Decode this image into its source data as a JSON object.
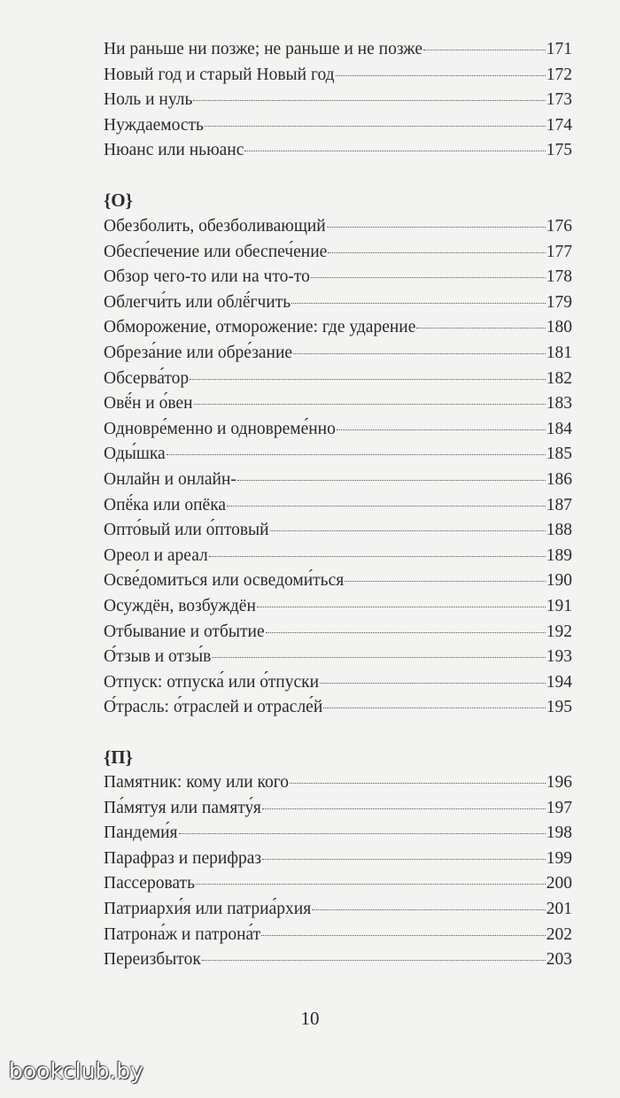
{
  "sections": [
    {
      "heading": "",
      "entries": [
        {
          "title": "Ни раньше ни позже; не раньше и не позже",
          "page": "171"
        },
        {
          "title": "Новый год и старый Новый год",
          "page": "172"
        },
        {
          "title": "Ноль и нуль",
          "page": "173"
        },
        {
          "title": "Нуждаемость",
          "page": "174"
        },
        {
          "title": "Нюанс или ньюанс",
          "page": "175"
        }
      ]
    },
    {
      "heading": "{О}",
      "entries": [
        {
          "title": "Обезболить, обезболивающий",
          "page": "176"
        },
        {
          "title": "Обесп́ечение или обеспеч́ение",
          "page": "177"
        },
        {
          "title": "Обзор чего-то или на что-то",
          "page": "178"
        },
        {
          "title": "Облегчи́ть или облё́гчить",
          "page": "179"
        },
        {
          "title": "Обморожение, отморожение: где ударение",
          "page": "180"
        },
        {
          "title": "Обреза́ние или обре́зание",
          "page": "181"
        },
        {
          "title": "Обсерва́тор",
          "page": "182"
        },
        {
          "title": "Овё́н и о́вен",
          "page": "183"
        },
        {
          "title": "Одновре́менно и одновреме́нно",
          "page": "184"
        },
        {
          "title": "Оды́шка",
          "page": "185"
        },
        {
          "title": "Онлайн и онлайн-",
          "page": "186"
        },
        {
          "title": "Опё́ка или опёка",
          "page": "187"
        },
        {
          "title": "Опто́вый или о́птовый",
          "page": "188"
        },
        {
          "title": "Ореол и ареал",
          "page": "189"
        },
        {
          "title": "Осве́домиться или осведоми́ться",
          "page": "190"
        },
        {
          "title": "Осуждён, возбуждён",
          "page": "191"
        },
        {
          "title": "Отбывание и отбытие",
          "page": "192"
        },
        {
          "title": "О́тзыв и отзы́в",
          "page": "193"
        },
        {
          "title": "Отпуск: отпуска́ или о́тпуски",
          "page": "194"
        },
        {
          "title": "О́трасль: о́траслей и отрасле́й",
          "page": "195"
        }
      ]
    },
    {
      "heading": "{П}",
      "entries": [
        {
          "title": "Памятник: кому или кого",
          "page": "196"
        },
        {
          "title": "Па́мятуя или памяту́я",
          "page": "197"
        },
        {
          "title": "Пандеми́я",
          "page": "198"
        },
        {
          "title": "Парафраз и перифраз",
          "page": "199"
        },
        {
          "title": "Пассеровать",
          "page": "200"
        },
        {
          "title": "Патриархи́я или патриа́рхия",
          "page": "201"
        },
        {
          "title": "Патрона́ж и патрона́т",
          "page": "202"
        },
        {
          "title": "Переизбыток",
          "page": "203"
        }
      ]
    }
  ],
  "page_number": "10",
  "watermark": "bookclub.by"
}
